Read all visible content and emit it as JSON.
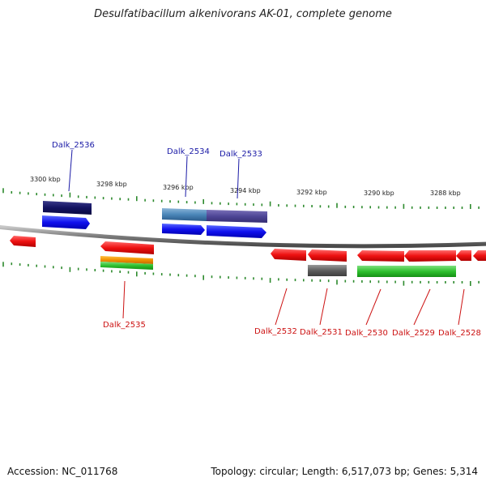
{
  "title": "Desulfatibacillum alkenivorans AK-01, complete genome",
  "footer": {
    "accession": "Accession: NC_011768",
    "info": "Topology: circular; Length: 6,517,073 bp; Genes: 5,314"
  },
  "ticks": [
    "3300 kbp",
    "3298 kbp",
    "3296 kbp",
    "3294 kbp",
    "3292 kbp",
    "3290 kbp",
    "3288 kbp"
  ],
  "colors": {
    "forward_label": "#1a1aa6",
    "reverse_label": "#cc1111",
    "backbone": "#808080",
    "tick": "#2d8a2d"
  },
  "genes_forward": [
    {
      "label": "Dalk_2536"
    },
    {
      "label": "Dalk_2534"
    },
    {
      "label": "Dalk_2533"
    }
  ],
  "genes_reverse": [
    {
      "label": "Dalk_2535"
    },
    {
      "label": "Dalk_2532"
    },
    {
      "label": "Dalk_2531"
    },
    {
      "label": "Dalk_2530"
    },
    {
      "label": "Dalk_2529"
    },
    {
      "label": "Dalk_2528"
    }
  ]
}
